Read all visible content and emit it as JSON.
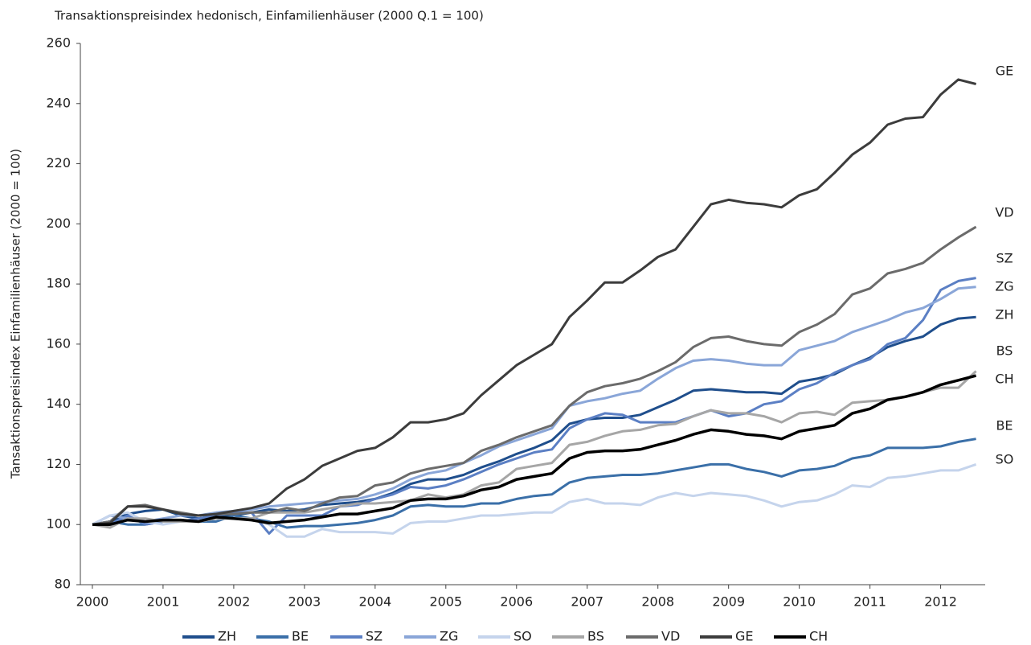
{
  "chart_data": {
    "type": "line",
    "title": "Transaktionspreisindex hedonisch, Einfamilienhäuser (2000 Q.1 = 100)",
    "y_label": "Tansaktionspreisindex Einfamilienhäuser (2000 = 100)",
    "x": [
      2000,
      2000.25,
      2000.5,
      2000.75,
      2001,
      2001.25,
      2001.5,
      2001.75,
      2002,
      2002.25,
      2002.5,
      2002.75,
      2003,
      2003.25,
      2003.5,
      2003.75,
      2004,
      2004.25,
      2004.5,
      2004.75,
      2005,
      2005.25,
      2005.5,
      2005.75,
      2006,
      2006.25,
      2006.5,
      2006.75,
      2007,
      2007.25,
      2007.5,
      2007.75,
      2008,
      2008.25,
      2008.5,
      2008.75,
      2009,
      2009.25,
      2009.5,
      2009.75,
      2010,
      2010.25,
      2010.5,
      2010.75,
      2011,
      2011.25,
      2011.5,
      2011.75,
      2012,
      2012.25,
      2012.5
    ],
    "xlim": [
      1999.83,
      2012.63
    ],
    "xticks": [
      2000,
      2001,
      2002,
      2003,
      2004,
      2005,
      2006,
      2007,
      2008,
      2009,
      2010,
      2011,
      2012
    ],
    "ylim": [
      80,
      260
    ],
    "yticks": [
      80,
      100,
      120,
      140,
      160,
      180,
      200,
      220,
      240,
      260
    ],
    "legend": "bottom",
    "series": [
      {
        "name": "ZH",
        "color": "#1f4e8c",
        "values": [
          100,
          101,
          103.5,
          104.5,
          105,
          103,
          102,
          103,
          103,
          104,
          105,
          104.5,
          105,
          106.5,
          107,
          107.5,
          108.5,
          110.5,
          113.5,
          115,
          115,
          116.5,
          119,
          121,
          123.5,
          125.5,
          128,
          133.5,
          135,
          135.5,
          135.5,
          136.5,
          139,
          141.5,
          144.5,
          145,
          144.5,
          144,
          144,
          143.5,
          147.5,
          148.5,
          150,
          153,
          155.5,
          159,
          161,
          162.5,
          166.5,
          168.5,
          169
        ]
      },
      {
        "name": "BE",
        "color": "#3a6fa8",
        "values": [
          100,
          101,
          100,
          100,
          101,
          101.5,
          101,
          101,
          103,
          102,
          101,
          99,
          99.5,
          99.5,
          100,
          100.5,
          101.5,
          103,
          106,
          106.5,
          106,
          106,
          107,
          107,
          108.5,
          109.5,
          110,
          114,
          115.5,
          116,
          116.5,
          116.5,
          117,
          118,
          119,
          120,
          120,
          118.5,
          117.5,
          116,
          118,
          118.5,
          119.5,
          122,
          123,
          125.5,
          125.5,
          125.5,
          126,
          127.5,
          128.5
        ]
      },
      {
        "name": "SZ",
        "color": "#5b7fc4",
        "values": [
          100,
          100,
          103,
          100,
          101,
          101,
          102,
          103,
          104,
          104,
          97,
          103,
          103,
          103,
          106,
          106.5,
          108.5,
          110,
          112.5,
          112,
          113,
          115,
          117.5,
          120,
          122,
          124,
          125,
          132,
          135,
          137,
          136.5,
          134,
          134,
          134,
          136,
          138,
          136,
          137,
          140,
          141,
          145,
          147,
          150.5,
          153,
          155,
          160,
          162,
          168,
          178,
          181,
          182
        ]
      },
      {
        "name": "ZG",
        "color": "#8aa6d8",
        "values": [
          100,
          103,
          102,
          101,
          102,
          103,
          103,
          104,
          104.5,
          105,
          106,
          106.5,
          107,
          107.5,
          108,
          108.5,
          110,
          112,
          115,
          117,
          118,
          120.5,
          123,
          126,
          128,
          130,
          132,
          139.5,
          141,
          142,
          143.5,
          144.5,
          148.5,
          152,
          154.5,
          155,
          154.5,
          153.5,
          153,
          153,
          158,
          159.5,
          161,
          164,
          166,
          168,
          170.5,
          172,
          175,
          178.5,
          179
        ]
      },
      {
        "name": "SO",
        "color": "#c5d4ec",
        "values": [
          100,
          103,
          104,
          101,
          100,
          101,
          101,
          102,
          102,
          102,
          100,
          96,
          96,
          98.5,
          97.5,
          97.5,
          97.5,
          97,
          100.5,
          101,
          101,
          102,
          103,
          103,
          103.5,
          104,
          104,
          107.5,
          108.5,
          107,
          107,
          106.5,
          109,
          110.5,
          109.5,
          110.5,
          110,
          109.5,
          108,
          106,
          107.5,
          108,
          110,
          113,
          112.5,
          115.5,
          116,
          117,
          118,
          118,
          120
        ]
      },
      {
        "name": "BS",
        "color": "#a6a6a6",
        "values": [
          100,
          99,
          102,
          102,
          101,
          101,
          101,
          102,
          102,
          102,
          104,
          104,
          104,
          105,
          106,
          107,
          107,
          107.5,
          108,
          110,
          109,
          110,
          113,
          114,
          118.5,
          119.5,
          120.5,
          126.5,
          127.5,
          129.5,
          131,
          131.5,
          133,
          133.5,
          136,
          138,
          137,
          137,
          136,
          134,
          137,
          137.5,
          136.5,
          140.5,
          141,
          141.5,
          142.5,
          144,
          145.5,
          145.5,
          151
        ]
      },
      {
        "name": "VD",
        "color": "#6b6b6b",
        "values": [
          100,
          101,
          106,
          106.5,
          105,
          104,
          103,
          103.5,
          103.5,
          104,
          104,
          105.5,
          104.5,
          107,
          109,
          109.5,
          113,
          114,
          117,
          118.5,
          119.5,
          120.5,
          124.5,
          126.5,
          129,
          131,
          133,
          139.5,
          144,
          146,
          147,
          148.5,
          151,
          154,
          159,
          162,
          162.5,
          161,
          160,
          159.5,
          164,
          166.5,
          170,
          176.5,
          178.5,
          183.5,
          185,
          187,
          191.5,
          195.5,
          199
        ]
      },
      {
        "name": "GE",
        "color": "#3c3c3c",
        "values": [
          100,
          100.5,
          106,
          106,
          105,
          103.5,
          103,
          103.5,
          104.5,
          105.5,
          107,
          112,
          115,
          119.5,
          122,
          124.5,
          125.5,
          129,
          134,
          134,
          135,
          137,
          143,
          148,
          153,
          156.5,
          160,
          169,
          174.5,
          180.5,
          180.5,
          184.5,
          189,
          191.5,
          199,
          206.5,
          208,
          207,
          206.5,
          205.5,
          209.5,
          211.5,
          217,
          223,
          227,
          233,
          235,
          235.5,
          243,
          248,
          246.5
        ]
      },
      {
        "name": "CH",
        "color": "#000000",
        "values": [
          100,
          100,
          101.5,
          101,
          101.5,
          101.5,
          101,
          102.5,
          102,
          101.5,
          100.5,
          101,
          101.5,
          102.5,
          103.5,
          103.5,
          104.5,
          105.5,
          108,
          108.5,
          108.5,
          109.5,
          111.5,
          112.5,
          115,
          116,
          117,
          122,
          124,
          124.5,
          124.5,
          125,
          126.5,
          128,
          130,
          131.5,
          131,
          130,
          129.5,
          128.5,
          131,
          132,
          133,
          137,
          138.5,
          141.5,
          142.5,
          144,
          146.5,
          148,
          149.5
        ]
      }
    ]
  }
}
